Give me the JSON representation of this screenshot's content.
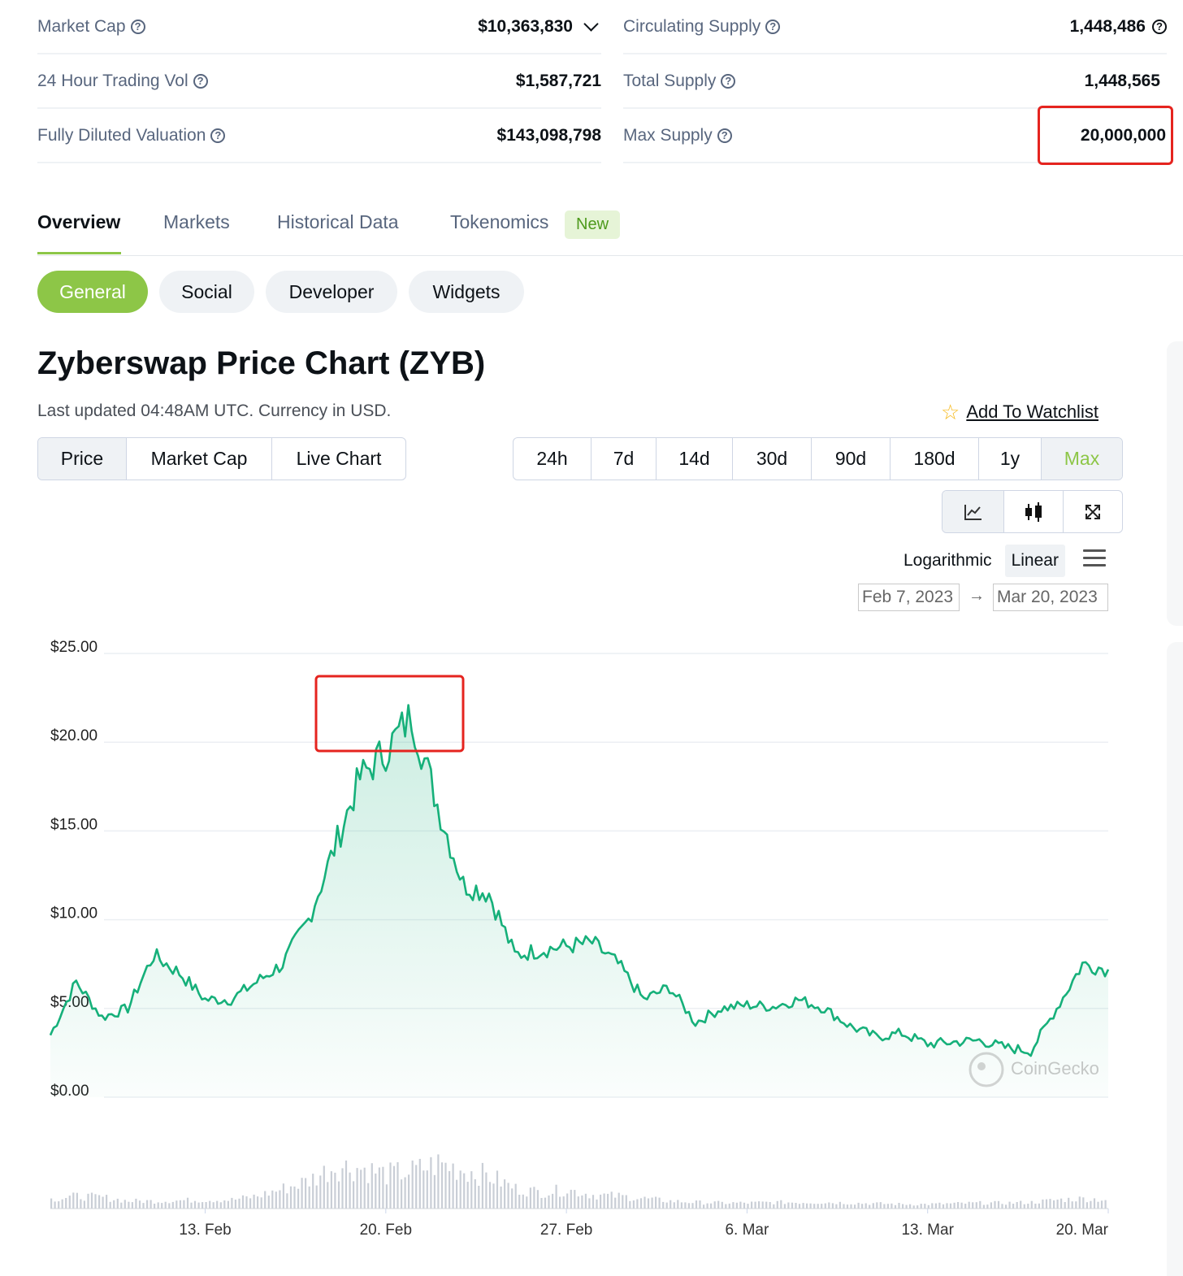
{
  "stats": {
    "left": [
      {
        "label": "Market Cap",
        "value": "$10,363,830",
        "dropdown": true
      },
      {
        "label": "24 Hour Trading Vol",
        "value": "$1,587,721"
      },
      {
        "label": "Fully Diluted Valuation",
        "value": "$143,098,798"
      }
    ],
    "right": [
      {
        "label": "Circulating Supply",
        "value": "1,448,486",
        "info": true
      },
      {
        "label": "Total Supply",
        "value": "1,448,565"
      },
      {
        "label": "Max Supply",
        "value": "20,000,000",
        "highlighted": true
      }
    ]
  },
  "tabs": [
    "Overview",
    "Markets",
    "Historical Data",
    "Tokenomics"
  ],
  "tabs_active": "Overview",
  "new_badge": "New",
  "subtabs": [
    "General",
    "Social",
    "Developer",
    "Widgets"
  ],
  "subtabs_active": "General",
  "title": "Zyberswap Price Chart (ZYB)",
  "last_updated": "Last updated 04:48AM UTC. Currency in USD.",
  "watchlist": "Add To Watchlist",
  "chart_type_tabs": [
    "Price",
    "Market Cap",
    "Live Chart"
  ],
  "chart_type_active": "Price",
  "range_tabs": [
    "24h",
    "7d",
    "14d",
    "30d",
    "90d",
    "180d",
    "1y",
    "Max"
  ],
  "range_active": "Max",
  "chart_view_icons": [
    "line-chart-icon",
    "candlestick-icon",
    "fullscreen-icon"
  ],
  "scale": {
    "logarithmic": "Logarithmic",
    "linear": "Linear",
    "active": "Linear"
  },
  "date_from": "Feb 7, 2023",
  "date_to": "Mar 20, 2023",
  "date_arrow": "→",
  "watermark": "CoinGecko",
  "colors": {
    "accent": "#8dc647",
    "line": "#16b07a",
    "highlight": "#e5241f"
  },
  "chart_data": {
    "type": "area",
    "y_ticks": [
      "$0.00",
      "$5.00",
      "$10.00",
      "$15.00",
      "$20.00",
      "$25.00"
    ],
    "ylim": [
      0,
      25
    ],
    "x_ticks": [
      "13. Feb",
      "20. Feb",
      "27. Feb",
      "6. Mar",
      "13. Mar",
      "20. Mar"
    ],
    "x_range": [
      "2023-02-07",
      "2023-03-20"
    ],
    "series": [
      {
        "dates": [
          "2023-02-07",
          "2023-02-08",
          "2023-02-09",
          "2023-02-10",
          "2023-02-11",
          "2023-02-12",
          "2023-02-13",
          "2023-02-14",
          "2023-02-15",
          "2023-02-16",
          "2023-02-17",
          "2023-02-18",
          "2023-02-19",
          "2023-02-20",
          "2023-02-21",
          "2023-02-22",
          "2023-02-23",
          "2023-02-24",
          "2023-02-25",
          "2023-02-26",
          "2023-02-27",
          "2023-02-28",
          "2023-03-01",
          "2023-03-02",
          "2023-03-03",
          "2023-03-04",
          "2023-03-05",
          "2023-03-06",
          "2023-03-07",
          "2023-03-08",
          "2023-03-09",
          "2023-03-10",
          "2023-03-11",
          "2023-03-12",
          "2023-03-13",
          "2023-03-14",
          "2023-03-15",
          "2023-03-16",
          "2023-03-17",
          "2023-03-18",
          "2023-03-19",
          "2023-03-20"
        ],
        "values": [
          3.5,
          6.5,
          4.5,
          5.0,
          8.0,
          7.0,
          5.5,
          5.5,
          6.5,
          7.5,
          10.0,
          14.0,
          18.0,
          19.5,
          21.5,
          16.5,
          12.0,
          11.5,
          8.0,
          8.3,
          8.5,
          8.7,
          7.5,
          5.5,
          6.2,
          4.2,
          5.0,
          5.2,
          5.1,
          5.5,
          5.0,
          4.0,
          3.4,
          3.6,
          3.0,
          3.1,
          3.2,
          2.8,
          2.6,
          5.0,
          7.5,
          7.2
        ]
      }
    ],
    "volume_range": [
      0,
      1
    ],
    "volume": [
      0.15,
      0.2,
      0.18,
      0.12,
      0.12,
      0.13,
      0.14,
      0.14,
      0.2,
      0.32,
      0.45,
      0.68,
      0.65,
      0.55,
      0.6,
      0.72,
      0.62,
      0.52,
      0.32,
      0.26,
      0.3,
      0.22,
      0.2,
      0.16,
      0.12,
      0.1,
      0.09,
      0.09,
      0.1,
      0.1,
      0.1,
      0.09,
      0.08,
      0.07,
      0.07,
      0.08,
      0.09,
      0.09,
      0.1,
      0.14,
      0.16,
      0.14
    ]
  }
}
